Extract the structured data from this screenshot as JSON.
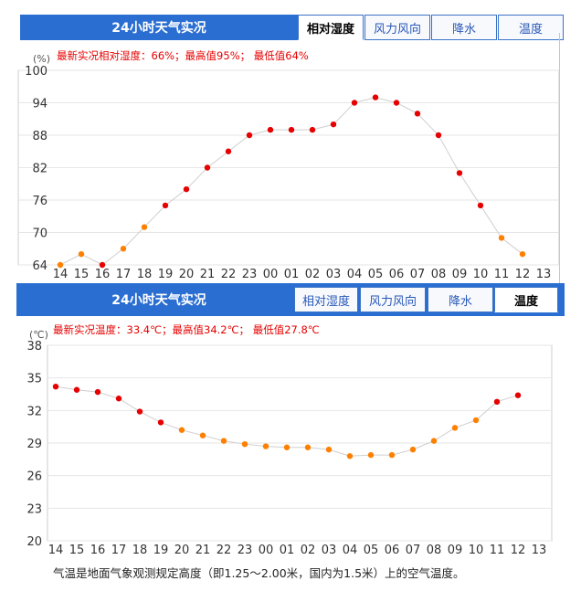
{
  "panels": [
    {
      "title": "24小时天气实况",
      "tabs": [
        "相对湿度",
        "风力风向",
        "降水",
        "温度"
      ],
      "active_tab": 0,
      "note": "最新实况相对湿度：66%；最高值95%；  最低值64%"
    },
    {
      "title": "24小时天气实况",
      "tabs": [
        "相对湿度",
        "风力风向",
        "降水",
        "温度"
      ],
      "active_tab": 3,
      "note": "最新实况温度：33.4℃；最高值34.2℃；  最低值27.8℃"
    }
  ],
  "description": "气温是地面气象观测规定高度（即1.25～2.00米，国内为1.5米）上的空气温度。",
  "colors": {
    "accent": "#2a6ed1",
    "point_red": "#e60000",
    "point_orange": "#ff8000",
    "line": "#cfcfcf",
    "grid": "#e6e6e6"
  },
  "chart_data": [
    {
      "type": "line",
      "ylabel": "(%)",
      "ylim": [
        64,
        100
      ],
      "yticks": [
        64,
        70,
        76,
        82,
        88,
        94,
        100
      ],
      "categories": [
        "14",
        "15",
        "16",
        "17",
        "18",
        "19",
        "20",
        "21",
        "22",
        "23",
        "00",
        "01",
        "02",
        "03",
        "04",
        "05",
        "06",
        "07",
        "08",
        "09",
        "10",
        "11",
        "12",
        "13"
      ],
      "values": [
        64,
        66,
        64,
        67,
        71,
        75,
        78,
        82,
        85,
        88,
        89,
        89,
        89,
        90,
        94,
        95,
        94,
        92,
        88,
        81,
        75,
        69,
        66,
        null
      ],
      "point_colors": [
        "orange",
        "orange",
        "red",
        "orange",
        "orange",
        "red",
        "red",
        "red",
        "red",
        "red",
        "red",
        "red",
        "red",
        "red",
        "red",
        "red",
        "red",
        "red",
        "red",
        "red",
        "red",
        "orange",
        "orange"
      ]
    },
    {
      "type": "line",
      "ylabel": "(℃)",
      "ylim": [
        20,
        38
      ],
      "yticks": [
        20,
        23,
        26,
        29,
        32,
        35,
        38
      ],
      "categories": [
        "14",
        "15",
        "16",
        "17",
        "18",
        "19",
        "20",
        "21",
        "22",
        "23",
        "00",
        "01",
        "02",
        "03",
        "04",
        "05",
        "06",
        "07",
        "08",
        "09",
        "10",
        "11",
        "12",
        "13"
      ],
      "values": [
        34.2,
        33.9,
        33.7,
        33.1,
        31.9,
        30.9,
        30.2,
        29.7,
        29.2,
        28.9,
        28.7,
        28.6,
        28.6,
        28.4,
        27.8,
        27.9,
        27.9,
        28.4,
        29.2,
        30.4,
        31.1,
        32.8,
        33.4,
        null
      ],
      "point_colors": [
        "red",
        "red",
        "red",
        "red",
        "red",
        "red",
        "orange",
        "orange",
        "orange",
        "orange",
        "orange",
        "orange",
        "orange",
        "orange",
        "orange",
        "orange",
        "orange",
        "orange",
        "orange",
        "orange",
        "orange",
        "red",
        "red"
      ]
    }
  ]
}
